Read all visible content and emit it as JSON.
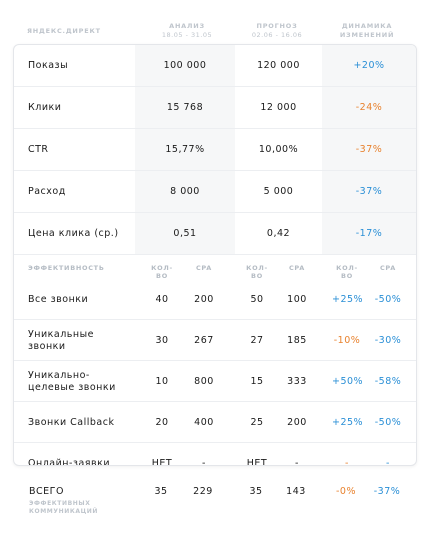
{
  "header": {
    "brand": "ЯНДЕКС.ДИРЕКТ",
    "analysis_title": "АНАЛИЗ",
    "analysis_dates": "18.05 - 31.05",
    "forecast_title": "ПРОГНОЗ",
    "forecast_dates": "02.06 - 16.06",
    "dynamics_line1": "ДИНАМИКА",
    "dynamics_line2": "ИЗМЕНЕНИЙ"
  },
  "metrics": [
    {
      "label": "Показы",
      "analysis": "100 000",
      "forecast": "120 000",
      "change": "+20%",
      "trend": "up"
    },
    {
      "label": "Клики",
      "analysis": "15 768",
      "forecast": "12 000",
      "change": "-24%",
      "trend": "down"
    },
    {
      "label": "CTR",
      "analysis": "15,77%",
      "forecast": "10,00%",
      "change": "-37%",
      "trend": "down"
    },
    {
      "label": "Расход",
      "analysis": "8 000",
      "forecast": "5 000",
      "change": "-37%",
      "trend": "up"
    },
    {
      "label": "Цена клика (ср.)",
      "analysis": "0,51",
      "forecast": "0,42",
      "change": "-17%",
      "trend": "up"
    }
  ],
  "efficiency": {
    "title": "ЭФФЕКТИВНОСТЬ",
    "col_count": "КОЛ-ВО",
    "col_cpa": "CPA"
  },
  "calls": [
    {
      "label_lines": [
        "Все звонки"
      ],
      "a_count": "40",
      "a_cpa": "200",
      "f_count": "50",
      "f_cpa": "100",
      "d_count": "+25%",
      "d_cpa": "-50%",
      "d_count_color": "blue",
      "d_cpa_color": "blue"
    },
    {
      "label_lines": [
        "Уникальные",
        "звонки"
      ],
      "a_count": "30",
      "a_cpa": "267",
      "f_count": "27",
      "f_cpa": "185",
      "d_count": "-10%",
      "d_cpa": "-30%",
      "d_count_color": "orange",
      "d_cpa_color": "blue"
    },
    {
      "label_lines": [
        "Уникально-",
        "целевые звонки"
      ],
      "a_count": "10",
      "a_cpa": "800",
      "f_count": "15",
      "f_cpa": "333",
      "d_count": "+50%",
      "d_cpa": "-58%",
      "d_count_color": "blue",
      "d_cpa_color": "blue"
    },
    {
      "label_lines": [
        "Звонки Callback"
      ],
      "a_count": "20",
      "a_cpa": "400",
      "f_count": "25",
      "f_cpa": "200",
      "d_count": "+25%",
      "d_cpa": "-50%",
      "d_count_color": "blue",
      "d_cpa_color": "blue"
    },
    {
      "label_lines": [
        "Онлайн-заявки"
      ],
      "a_count": "НЕТ",
      "a_cpa": "-",
      "f_count": "НЕТ",
      "f_cpa": "-",
      "d_count": "-",
      "d_cpa": "-",
      "d_count_color": "orange",
      "d_cpa_color": "blue"
    }
  ],
  "total": {
    "label": "ВСЕГО",
    "sub_line1": "ЭФФЕКТИВНЫХ",
    "sub_line2": "КОММУНИКАЦИЙ",
    "a_count": "35",
    "a_cpa": "229",
    "f_count": "35",
    "f_cpa": "143",
    "d_count": "-0%",
    "d_cpa": "-37%",
    "d_count_color": "orange",
    "d_cpa_color": "blue"
  },
  "colors": {
    "up": "#2a8fd6",
    "down": "#e8822e"
  }
}
